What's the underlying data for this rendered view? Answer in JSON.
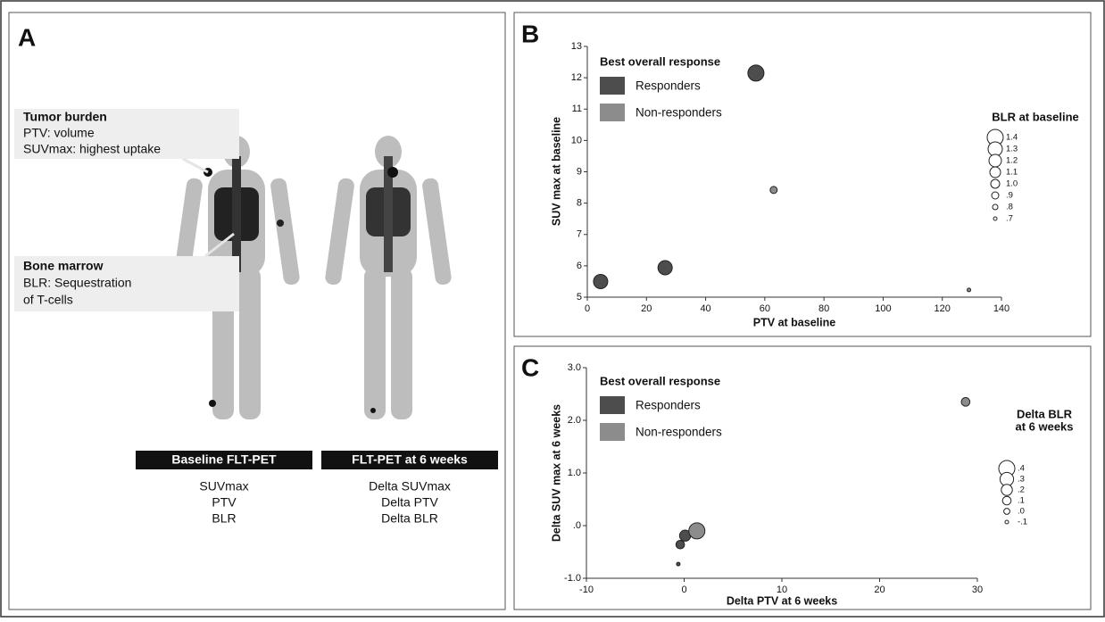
{
  "panel_a": {
    "letter": "A",
    "tumor": {
      "heading": "Tumor burden",
      "lines": [
        "PTV: volume",
        "SUVmax: highest uptake"
      ]
    },
    "marrow": {
      "heading": "Bone marrow",
      "lines": [
        "BLR: Sequestration",
        "of T-cells"
      ]
    },
    "scans": [
      {
        "caption": "Baseline FLT-PET",
        "lines": [
          "SUVmax",
          "PTV",
          "BLR"
        ]
      },
      {
        "caption": "FLT-PET at 6 weeks",
        "lines": [
          "Delta SUVmax",
          "Delta PTV",
          "Delta BLR"
        ]
      }
    ]
  },
  "chart_data": [
    {
      "type": "bubble",
      "title": "B",
      "x_label": "PTV at baseline",
      "y_label": "SUV max at baseline",
      "xlim": [
        0,
        140
      ],
      "xticks": [
        0,
        20,
        40,
        60,
        80,
        100,
        120,
        140
      ],
      "ylim": [
        5,
        13
      ],
      "yticks": [
        5,
        6,
        7,
        8,
        9,
        10,
        11,
        12,
        13
      ],
      "legend_title": "Best overall response",
      "series": [
        {
          "name": "Responders",
          "color": "#4d4d4d",
          "x": [
            4.5,
            26.3,
            57
          ],
          "values": [
            5.5,
            5.94,
            12.15
          ],
          "sizes": [
            1.3,
            1.3,
            1.4
          ]
        },
        {
          "name": "Non-responders",
          "color": "#8c8c8c",
          "x": [
            63,
            129
          ],
          "values": [
            8.42,
            5.23
          ],
          "sizes": [
            0.9,
            0.7
          ]
        }
      ],
      "size_title": [
        "BLR at baseline"
      ],
      "size_ticks": [
        1.4,
        1.3,
        1.2,
        1.1,
        {
          "value": 1,
          "label": "1.0"
        },
        {
          "value": 0.9,
          "label": ".9"
        },
        {
          "value": 0.8,
          "label": ".8"
        },
        {
          "value": 0.7,
          "label": ".7"
        }
      ]
    },
    {
      "type": "bubble",
      "title": "C",
      "x_label": "Delta PTV at 6 weeks",
      "y_label": "Delta SUV max at 6 weeks",
      "xlim": [
        -10,
        30
      ],
      "xticks": [
        -10,
        0,
        10,
        20,
        30
      ],
      "ylim": [
        -1,
        3
      ],
      "yticks": [
        {
          "value": -1,
          "label": "-1.0"
        },
        {
          "value": 0,
          "label": ".0"
        },
        {
          "value": 1,
          "label": "1.0"
        },
        {
          "value": 2,
          "label": "2.0"
        },
        {
          "value": 3,
          "label": "3.0"
        }
      ],
      "legend_title": "Best overall response",
      "series": [
        {
          "name": "Responders",
          "color": "#4d4d4d",
          "x": [
            0.1,
            -0.4,
            -0.6
          ],
          "values": [
            -0.19,
            -0.36,
            -0.73
          ],
          "sizes": [
            0.2,
            0.1,
            -0.1
          ]
        },
        {
          "name": "Non-responders",
          "color": "#8c8c8c",
          "x": [
            28.8,
            1.3
          ],
          "values": [
            2.35,
            -0.1
          ],
          "sizes": [
            0.1,
            0.4
          ]
        }
      ],
      "size_title": [
        "Delta BLR",
        "at 6 weeks"
      ],
      "size_ticks": [
        {
          "value": 0.4,
          "label": ".4"
        },
        {
          "value": 0.3,
          "label": ".3"
        },
        {
          "value": 0.2,
          "label": ".2"
        },
        {
          "value": 0.1,
          "label": ".1"
        },
        {
          "value": 0,
          "label": ".0"
        },
        {
          "value": -0.1,
          "label": "-.1"
        }
      ]
    }
  ]
}
